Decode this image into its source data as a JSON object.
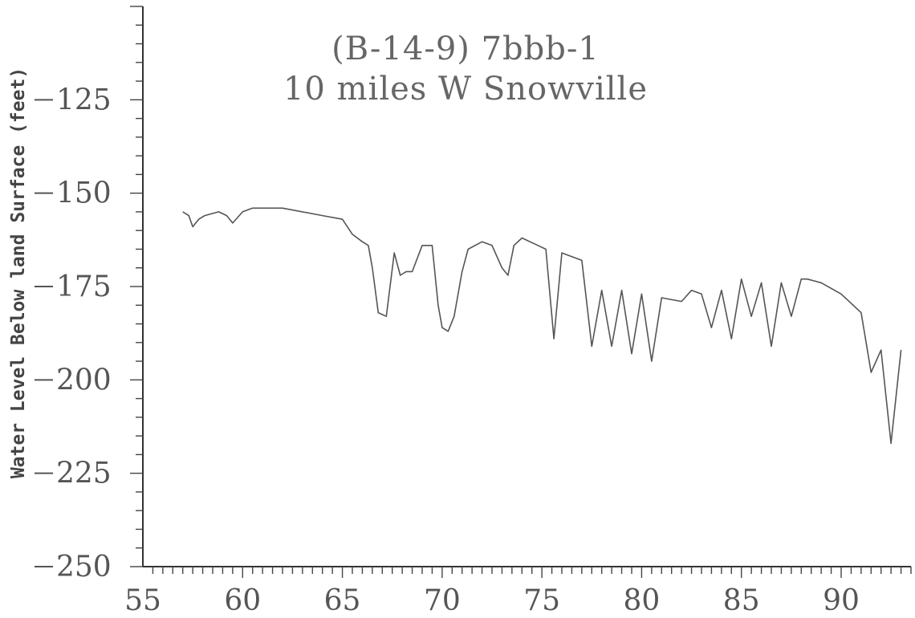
{
  "chart_data": {
    "type": "line",
    "title_line1": "(B-14-9) 7bbb-1",
    "title_line2": "10 miles W Snowville",
    "ylabel": "Water Level Below land Surface (feet)",
    "xlabel": "",
    "xlim": [
      55,
      93.5
    ],
    "ylim": [
      -250,
      -100
    ],
    "xticks": [
      "55",
      "60",
      "65",
      "70",
      "75",
      "80",
      "85",
      "90"
    ],
    "yticks": [
      "-125",
      "-150",
      "-175",
      "-200",
      "-225",
      "-250"
    ],
    "grid": false,
    "series": [
      {
        "name": "",
        "x": [
          57.0,
          57.3,
          57.5,
          57.8,
          58.1,
          58.8,
          59.2,
          59.5,
          60.0,
          60.5,
          62.0,
          64.0,
          65.0,
          65.5,
          66.0,
          66.3,
          66.5,
          66.8,
          67.2,
          67.6,
          67.9,
          68.2,
          68.5,
          69.0,
          69.5,
          69.8,
          70.0,
          70.3,
          70.6,
          71.0,
          71.3,
          72.0,
          72.5,
          73.0,
          73.3,
          73.6,
          74.0,
          74.8,
          75.2,
          75.6,
          76.0,
          77.0,
          77.5,
          78.0,
          78.5,
          79.0,
          79.5,
          80.0,
          80.5,
          81.0,
          82.0,
          82.5,
          83.0,
          83.5,
          84.0,
          84.5,
          85.0,
          85.5,
          86.0,
          86.5,
          87.0,
          87.5,
          88.0,
          88.3,
          89.0,
          90.0,
          91.0,
          91.5,
          92.0,
          92.5,
          93.0
        ],
        "y": [
          -155,
          -156,
          -159,
          -157,
          -156,
          -155,
          -156,
          -158,
          -155,
          -154,
          -154,
          -156,
          -157,
          -161,
          -163,
          -164,
          -170,
          -182,
          -183,
          -166,
          -172,
          -171,
          -171,
          -164,
          -164,
          -180,
          -186,
          -187,
          -183,
          -171,
          -165,
          -163,
          -164,
          -170,
          -172,
          -164,
          -162,
          -164,
          -165,
          -189,
          -166,
          -168,
          -191,
          -176,
          -191,
          -176,
          -193,
          -177,
          -195,
          -178,
          -179,
          -176,
          -177,
          -186,
          -176,
          -189,
          -173,
          -183,
          -174,
          -191,
          -174,
          -183,
          -173,
          -173,
          -174,
          -177,
          -182,
          -198,
          -192,
          -217,
          -192
        ]
      }
    ]
  }
}
